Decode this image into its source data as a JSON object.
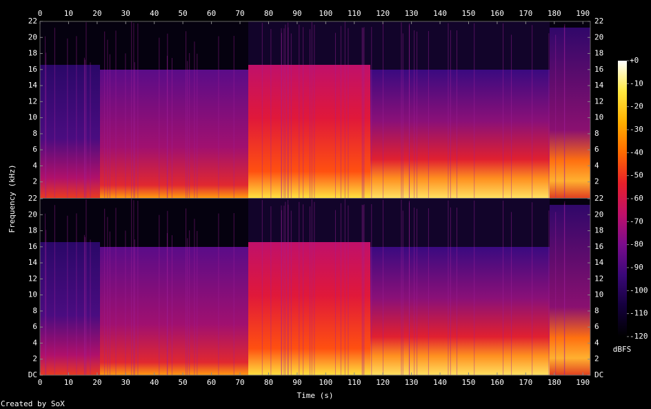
{
  "chart_data": [
    {
      "type": "spectrogram",
      "xlim": [
        0,
        192.6
      ],
      "xticks": [
        0,
        10,
        20,
        30,
        40,
        50,
        60,
        70,
        80,
        90,
        100,
        110,
        120,
        130,
        140,
        150,
        160,
        170,
        180,
        190
      ],
      "ylim": [
        0,
        22
      ],
      "yticks": [
        2,
        4,
        6,
        8,
        10,
        12,
        14,
        16,
        18,
        20,
        22
      ]
    },
    {
      "type": "spectrogram",
      "xlim": [
        0,
        192.6
      ],
      "xticks": [
        0,
        10,
        20,
        30,
        40,
        50,
        60,
        70,
        80,
        90,
        100,
        110,
        120,
        130,
        140,
        150,
        160,
        170,
        180,
        190
      ],
      "ylim": [
        0,
        22
      ],
      "yticks": [
        {
          "value": 0,
          "label": "DC"
        },
        2,
        4,
        6,
        8,
        10,
        12,
        14,
        16,
        18,
        20,
        22
      ],
      "xlabel": "Time (s)"
    }
  ],
  "ylabel": "Frequency (kHz)",
  "colorbar": {
    "label": "dBFS",
    "lim": [
      -120,
      0
    ],
    "ticks": [
      {
        "value": 0,
        "label": "+0"
      },
      -10,
      -20,
      -30,
      -40,
      -50,
      -60,
      -70,
      -80,
      -90,
      -100,
      -110,
      -120
    ],
    "colors": [
      "#000000",
      "#14003c",
      "#3a0878",
      "#7a0c8c",
      "#c0106a",
      "#e8202a",
      "#ff6a00",
      "#ffb000",
      "#ffe840",
      "#ffffff"
    ]
  },
  "footer": "Created by SoX"
}
